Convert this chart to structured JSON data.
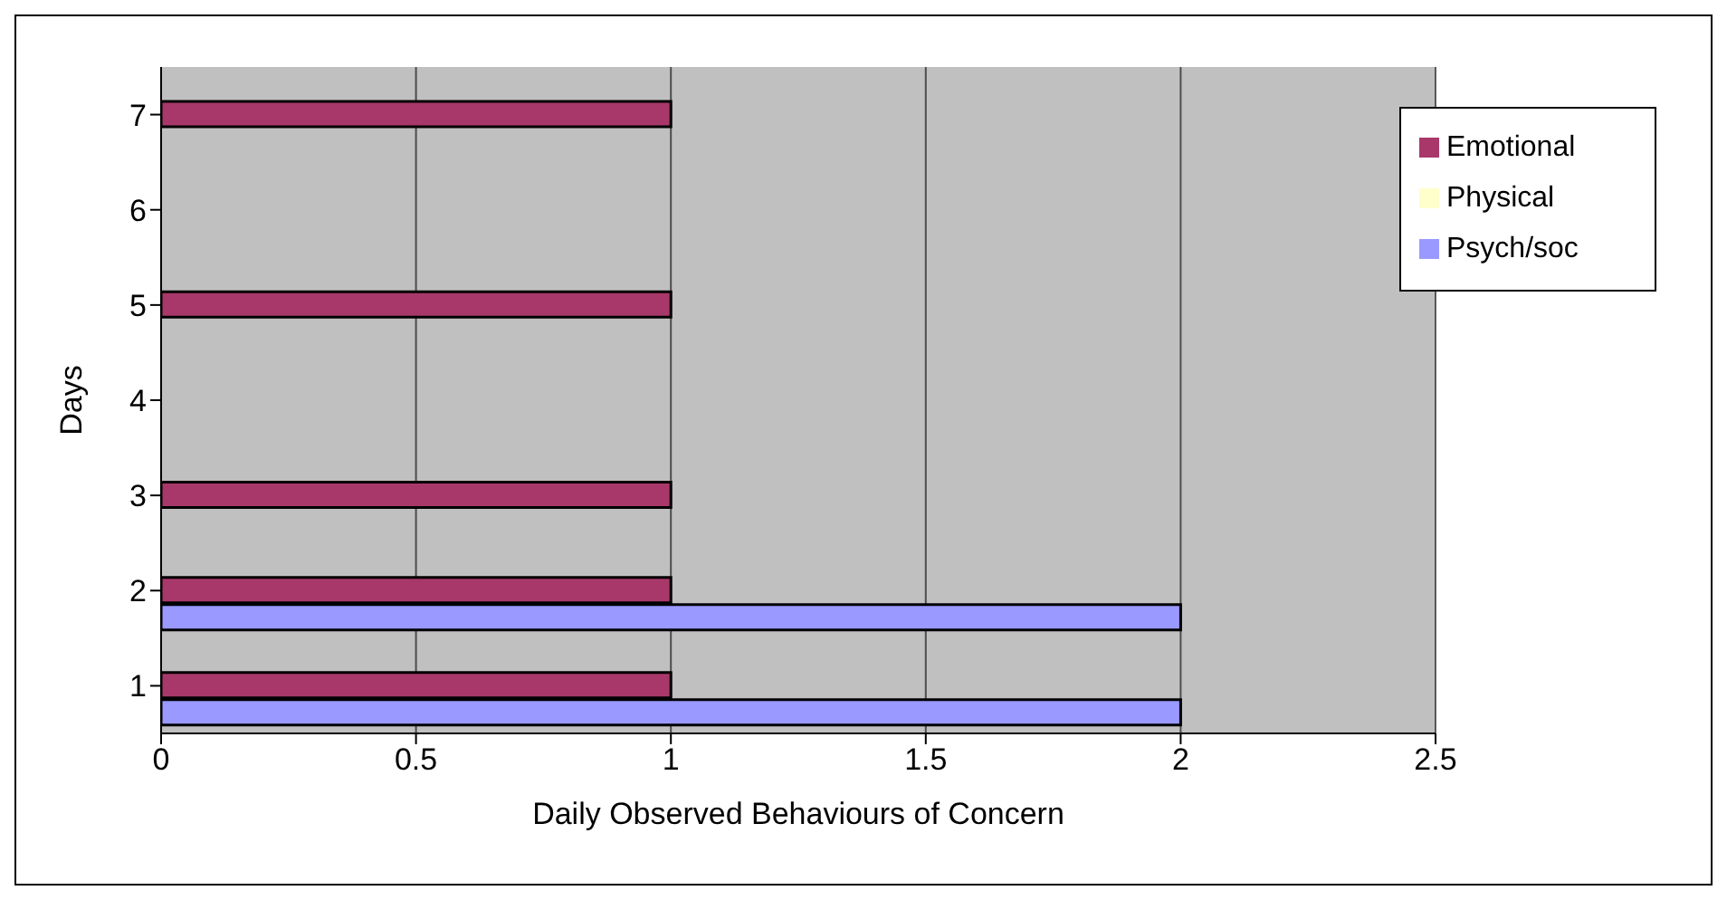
{
  "chart_data": {
    "type": "bar",
    "orientation": "horizontal",
    "xlabel": "Daily Observed Behaviours of Concern",
    "ylabel": "Days",
    "categories": [
      "7",
      "6",
      "5",
      "4",
      "3",
      "2",
      "1"
    ],
    "series": [
      {
        "name": "Physical",
        "color": "#ffffcc",
        "values": [
          0,
          0,
          0,
          0,
          0,
          0,
          0
        ]
      },
      {
        "name": "Emotional",
        "color": "#a8386a",
        "values": [
          1,
          0,
          1,
          0,
          1,
          1,
          1
        ]
      },
      {
        "name": "Psych/soc",
        "color": "#9999ff",
        "values": [
          0,
          0,
          0,
          0,
          0,
          2,
          2
        ]
      }
    ],
    "xlim": [
      0,
      2.5
    ],
    "xticks": [
      0,
      0.5,
      1,
      1.5,
      2,
      2.5
    ],
    "grid": "x",
    "legend": "top right"
  }
}
